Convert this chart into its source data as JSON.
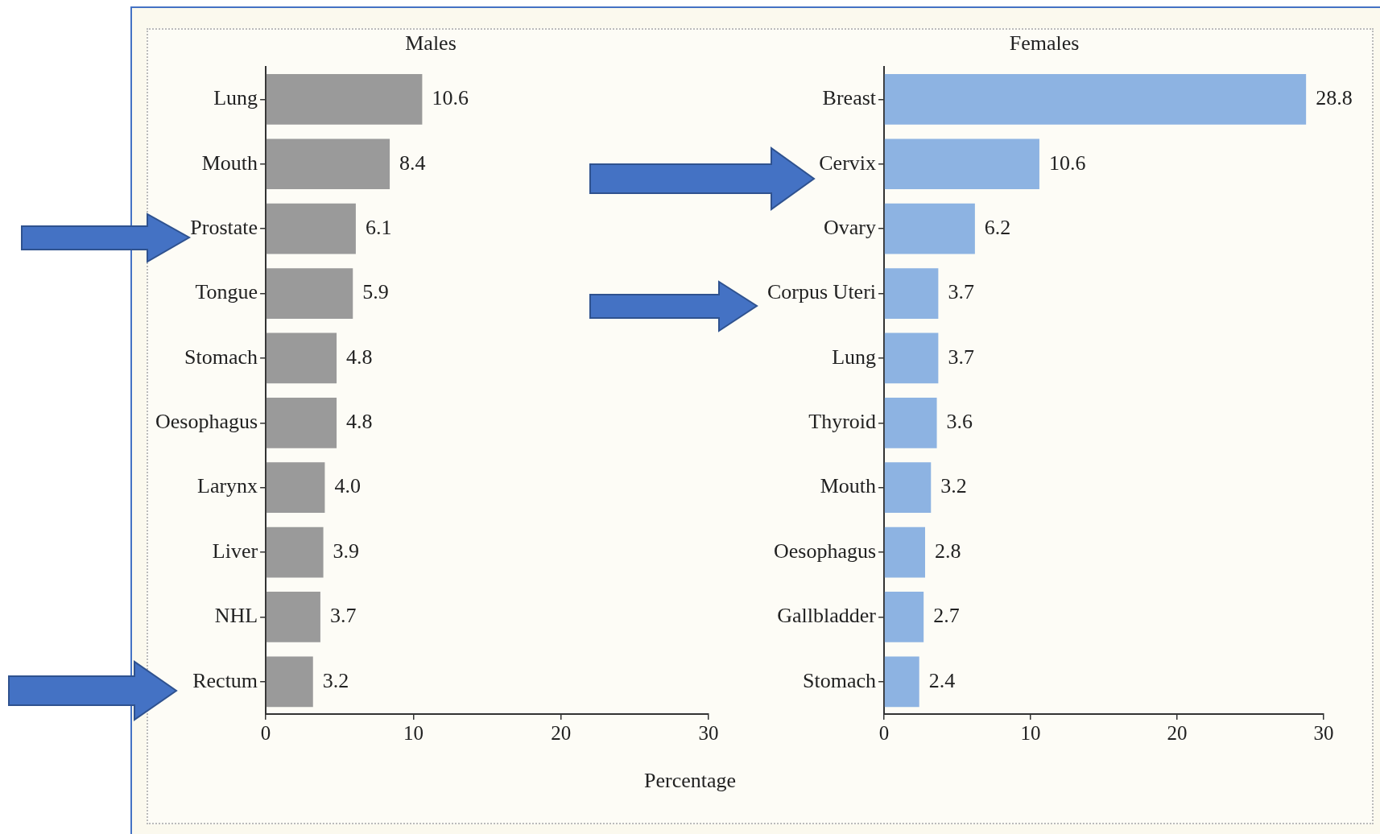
{
  "chart_data": [
    {
      "type": "bar",
      "orientation": "horizontal",
      "title": "Males",
      "xlabel": "Percentage",
      "categories": [
        "Lung",
        "Mouth",
        "Prostate",
        "Tongue",
        "Stomach",
        "Oesophagus",
        "Larynx",
        "Liver",
        "NHL",
        "Rectum"
      ],
      "values": [
        10.6,
        8.4,
        6.1,
        5.9,
        4.8,
        4.8,
        4.0,
        3.9,
        3.7,
        3.2
      ],
      "value_labels": [
        "10.6",
        "8.4",
        "6.1",
        "5.9",
        "4.8",
        "4.8",
        "4.0",
        "3.9",
        "3.7",
        "3.2"
      ],
      "color": "#9a9a9a",
      "xlim": [
        0,
        30
      ],
      "xticks": [
        0,
        10,
        20,
        30
      ],
      "grid": false,
      "legend": false
    },
    {
      "type": "bar",
      "orientation": "horizontal",
      "title": "Females",
      "categories": [
        "Breast",
        "Cervix",
        "Ovary",
        "Corpus Uteri",
        "Lung",
        "Thyroid",
        "Mouth",
        "Oesophagus",
        "Gallbladder",
        "Stomach"
      ],
      "values": [
        28.8,
        10.6,
        6.2,
        3.7,
        3.7,
        3.6,
        3.2,
        2.8,
        2.7,
        2.4
      ],
      "value_labels": [
        "28.8",
        "10.6",
        "6.2",
        "3.7",
        "3.7",
        "3.6",
        "3.2",
        "2.8",
        "2.7",
        "2.4"
      ],
      "color": "#8db3e2",
      "xlim": [
        0,
        30
      ],
      "xticks": [
        0,
        10,
        20,
        30
      ],
      "grid": false,
      "legend": false
    }
  ]
}
